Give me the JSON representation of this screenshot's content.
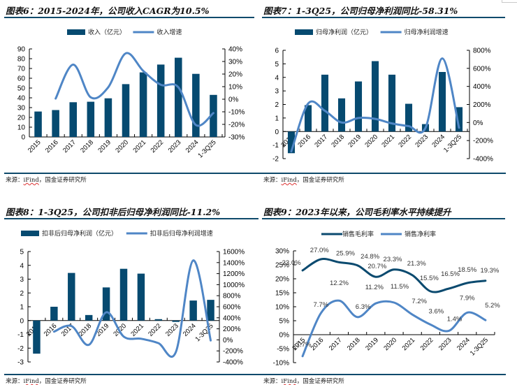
{
  "source_text": {
    "prefix": "来源：",
    "ifind": "iFind",
    "suffix": "，国金证券研究所"
  },
  "colors": {
    "bar": "#064a70",
    "line_light": "#4f86c6",
    "line_dark": "#0b4a6f",
    "rule": "#0e4a6b"
  },
  "chart_data": [
    {
      "id": "fig6",
      "type": "bar",
      "title": "图表6：2015-2024年，公司收入CAGR为10.5%",
      "categories": [
        "2015",
        "2016",
        "2017",
        "2018",
        "2019",
        "2020",
        "2021",
        "2022",
        "2023",
        "2024",
        "1-3Q25"
      ],
      "series": [
        {
          "name": "收入（亿元）",
          "type": "bar",
          "axis": "left",
          "values": [
            26,
            27.5,
            35.5,
            36,
            39.5,
            54,
            66,
            74,
            81,
            64.5,
            43
          ]
        },
        {
          "name": "收入增速",
          "type": "line",
          "axis": "right",
          "values": [
            null,
            0.5,
            27.5,
            1.5,
            9.5,
            36.5,
            22.5,
            11.5,
            9.5,
            -20.5,
            -11
          ]
        }
      ],
      "left_axis": {
        "min": 0,
        "max": 90,
        "step": 10,
        "ticks": [
          "0",
          "10",
          "20",
          "30",
          "40",
          "50",
          "60",
          "70",
          "80",
          "90"
        ]
      },
      "right_axis": {
        "min": -30,
        "max": 40,
        "step": 10,
        "ticks": [
          "-30%",
          "-20%",
          "-10%",
          "0%",
          "10%",
          "20%",
          "30%",
          "40%"
        ]
      },
      "legend": [
        "收入（亿元）",
        "收入增速"
      ],
      "legend_position": "top-center",
      "grid": false
    },
    {
      "id": "fig7",
      "type": "bar",
      "title": "图表7：1-3Q25，公司归母净利润同比-58.31%",
      "categories": [
        "2015",
        "2016",
        "2017",
        "2018",
        "2019",
        "2020",
        "2021",
        "2022",
        "2023",
        "2024",
        "1-3Q25"
      ],
      "series": [
        {
          "name": "归母净利润（亿元）",
          "type": "bar",
          "axis": "left",
          "values": [
            -1.6,
            1.95,
            4.2,
            2.45,
            3.7,
            5.2,
            4.2,
            2.05,
            0.55,
            4.4,
            1.8
          ]
        },
        {
          "name": "归母净利润增速",
          "type": "line",
          "axis": "right",
          "values": [
            -320,
            210,
            130,
            0,
            50,
            40,
            -10,
            -40,
            -60,
            710,
            -58
          ]
        }
      ],
      "left_axis": {
        "min": -2,
        "max": 6,
        "step": 1,
        "ticks": [
          "-2",
          "-1",
          "0",
          "1",
          "2",
          "3",
          "4",
          "5",
          "6"
        ]
      },
      "right_axis": {
        "min": -400,
        "max": 800,
        "step": 200,
        "ticks": [
          "-400%",
          "-200%",
          "0%",
          "200%",
          "400%",
          "600%",
          "800%"
        ]
      },
      "legend": [
        "归母净利润（亿元）",
        "归母净利润增速"
      ],
      "legend_position": "top-center",
      "grid": false
    },
    {
      "id": "fig8",
      "type": "bar",
      "title": "图表8：1-3Q25，公司扣非后归母净利润同比-11.2%",
      "categories": [
        "2015",
        "2016",
        "2017",
        "2018",
        "2019",
        "2020",
        "2021",
        "2022",
        "2023",
        "2024",
        "1-3Q25"
      ],
      "series": [
        {
          "name": "扣非后归母净利润（亿元）",
          "type": "bar",
          "axis": "left",
          "values": [
            -2.4,
            1.0,
            3.45,
            0.4,
            2.4,
            3.75,
            3.4,
            0.1,
            -0.1,
            1.45,
            1.5
          ]
        },
        {
          "name": "扣非后归母净利润增速",
          "type": "line",
          "axis": "right",
          "values": [
            null,
            150,
            250,
            -90,
            500,
            60,
            20,
            -60,
            -220,
            1440,
            -11
          ]
        }
      ],
      "left_axis": {
        "min": -3,
        "max": 5,
        "step": 1,
        "ticks": [
          "-3",
          "-2",
          "-1",
          "0",
          "1",
          "2",
          "3",
          "4",
          "5"
        ]
      },
      "right_axis": {
        "min": -400,
        "max": 1600,
        "step": 200,
        "ticks": [
          "-400%",
          "-200%",
          "0%",
          "200%",
          "400%",
          "600%",
          "800%",
          "1000%",
          "1200%",
          "1400%",
          "1600%"
        ]
      },
      "legend": [
        "扣非后归母净利润（亿元）",
        "扣非后归母净利润增速"
      ],
      "legend_position": "top-center",
      "grid": false
    },
    {
      "id": "fig9",
      "type": "line",
      "title": "图表9：2023年以来，公司毛利率水平持续提升",
      "categories": [
        "2015",
        "2016",
        "2017",
        "2018",
        "2019",
        "2020",
        "2021",
        "2022",
        "2023",
        "2024",
        "1-3Q25"
      ],
      "series": [
        {
          "name": "销售毛利率",
          "values": [
            23.0,
            27.0,
            25.9,
            24.8,
            20.7,
            23.3,
            21.3,
            15.5,
            16.5,
            18.5,
            19.3
          ],
          "labels": [
            "23.0%",
            "27.0%",
            "25.9%",
            "24.8%",
            "20.7%",
            "23.3%",
            "21.3%",
            "15.5%",
            "16.5%",
            "18.5%",
            "19.3%"
          ]
        },
        {
          "name": "销售净利率",
          "values": [
            -7.7,
            7.7,
            12.2,
            6.3,
            11.2,
            11.5,
            7.2,
            3.6,
            1.4,
            7.9,
            5.2
          ],
          "labels": [
            "-7.7%",
            "7.7%",
            "12.2%",
            "6.3%",
            "11.2%",
            "11.5%",
            "7.2%",
            "3.6%",
            "1.4%",
            "7.9%",
            "5.2%"
          ]
        }
      ],
      "left_axis": {
        "min": -10,
        "max": 30,
        "step": 5,
        "ticks": [
          "-10%",
          "-5%",
          "0%",
          "5%",
          "10%",
          "15%",
          "20%",
          "25%",
          "30%"
        ]
      },
      "legend": [
        "销售毛利率",
        "销售净利率"
      ],
      "legend_position": "top-center",
      "grid": false
    }
  ]
}
